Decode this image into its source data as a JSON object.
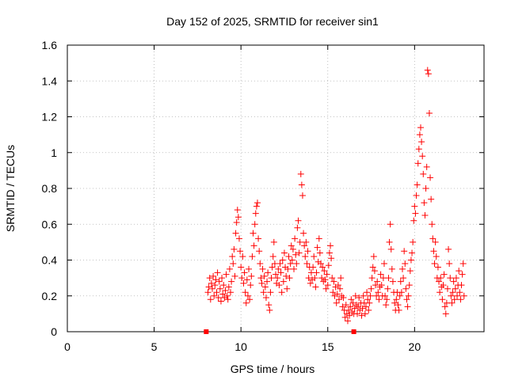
{
  "chart_data": {
    "type": "scatter",
    "title": "Day 152 of 2025, SRMTID for receiver sin1",
    "xlabel": "GPS time / hours",
    "ylabel": "SRMTID / TECUs",
    "xlim": [
      0,
      24
    ],
    "ylim": [
      0,
      1.6
    ],
    "xticks": [
      0,
      5,
      10,
      15,
      20
    ],
    "yticks": [
      0,
      0.2,
      0.4,
      0.6,
      0.8,
      1,
      1.2,
      1.4,
      1.6
    ],
    "ytick_labels": [
      "0",
      "0.2",
      "0.4",
      "0.6",
      "0.8",
      "1",
      "1.2",
      "1.4",
      "1.6"
    ],
    "grid": true,
    "marker": "plus",
    "color": "#ff0000",
    "zero_markers": [
      [
        8.0,
        0.0
      ],
      [
        16.5,
        0.0
      ]
    ],
    "series": [
      {
        "name": "sin1",
        "points": [
          [
            8.1,
            0.22
          ],
          [
            8.15,
            0.25
          ],
          [
            8.2,
            0.3
          ],
          [
            8.25,
            0.18
          ],
          [
            8.3,
            0.27
          ],
          [
            8.35,
            0.24
          ],
          [
            8.4,
            0.31
          ],
          [
            8.45,
            0.2
          ],
          [
            8.5,
            0.26
          ],
          [
            8.55,
            0.29
          ],
          [
            8.6,
            0.22
          ],
          [
            8.65,
            0.33
          ],
          [
            8.7,
            0.19
          ],
          [
            8.75,
            0.28
          ],
          [
            8.8,
            0.24
          ],
          [
            8.85,
            0.17
          ],
          [
            8.9,
            0.3
          ],
          [
            8.95,
            0.21
          ],
          [
            9.0,
            0.26
          ],
          [
            9.05,
            0.19
          ],
          [
            9.1,
            0.23
          ],
          [
            9.15,
            0.32
          ],
          [
            9.2,
            0.2
          ],
          [
            9.25,
            0.18
          ],
          [
            9.3,
            0.25
          ],
          [
            9.35,
            0.35
          ],
          [
            9.4,
            0.22
          ],
          [
            9.45,
            0.28
          ],
          [
            9.5,
            0.42
          ],
          [
            9.55,
            0.38
          ],
          [
            9.6,
            0.46
          ],
          [
            9.65,
            0.31
          ],
          [
            9.7,
            0.55
          ],
          [
            9.75,
            0.61
          ],
          [
            9.8,
            0.68
          ],
          [
            9.85,
            0.64
          ],
          [
            9.9,
            0.52
          ],
          [
            9.95,
            0.45
          ],
          [
            10.0,
            0.36
          ],
          [
            10.05,
            0.3
          ],
          [
            10.1,
            0.42
          ],
          [
            10.15,
            0.27
          ],
          [
            10.2,
            0.33
          ],
          [
            10.25,
            0.22
          ],
          [
            10.3,
            0.16
          ],
          [
            10.35,
            0.29
          ],
          [
            10.4,
            0.2
          ],
          [
            10.45,
            0.35
          ],
          [
            10.5,
            0.18
          ],
          [
            10.55,
            0.26
          ],
          [
            10.6,
            0.31
          ],
          [
            10.65,
            0.42
          ],
          [
            10.7,
            0.55
          ],
          [
            10.75,
            0.48
          ],
          [
            10.8,
            0.6
          ],
          [
            10.85,
            0.66
          ],
          [
            10.9,
            0.7
          ],
          [
            10.95,
            0.72
          ],
          [
            11.0,
            0.52
          ],
          [
            11.05,
            0.45
          ],
          [
            11.1,
            0.38
          ],
          [
            11.15,
            0.3
          ],
          [
            11.2,
            0.27
          ],
          [
            11.25,
            0.35
          ],
          [
            11.3,
            0.22
          ],
          [
            11.35,
            0.31
          ],
          [
            11.4,
            0.25
          ],
          [
            11.45,
            0.19
          ],
          [
            11.5,
            0.28
          ],
          [
            11.55,
            0.33
          ],
          [
            11.6,
            0.15
          ],
          [
            11.65,
            0.12
          ],
          [
            11.7,
            0.22
          ],
          [
            11.75,
            0.3
          ],
          [
            11.8,
            0.36
          ],
          [
            11.85,
            0.42
          ],
          [
            11.9,
            0.5
          ],
          [
            11.95,
            0.38
          ],
          [
            12.0,
            0.32
          ],
          [
            12.05,
            0.27
          ],
          [
            12.1,
            0.3
          ],
          [
            12.15,
            0.35
          ],
          [
            12.2,
            0.26
          ],
          [
            12.25,
            0.38
          ],
          [
            12.3,
            0.33
          ],
          [
            12.35,
            0.22
          ],
          [
            12.4,
            0.4
          ],
          [
            12.45,
            0.28
          ],
          [
            12.5,
            0.44
          ],
          [
            12.55,
            0.36
          ],
          [
            12.6,
            0.31
          ],
          [
            12.65,
            0.24
          ],
          [
            12.7,
            0.35
          ],
          [
            12.75,
            0.42
          ],
          [
            12.8,
            0.3
          ],
          [
            12.85,
            0.38
          ],
          [
            12.9,
            0.48
          ],
          [
            12.95,
            0.4
          ],
          [
            13.0,
            0.46
          ],
          [
            13.05,
            0.35
          ],
          [
            13.1,
            0.52
          ],
          [
            13.15,
            0.43
          ],
          [
            13.2,
            0.38
          ],
          [
            13.25,
            0.58
          ],
          [
            13.3,
            0.62
          ],
          [
            13.35,
            0.44
          ],
          [
            13.4,
            0.5
          ],
          [
            13.45,
            0.88
          ],
          [
            13.5,
            0.82
          ],
          [
            13.55,
            0.76
          ],
          [
            13.6,
            0.55
          ],
          [
            13.65,
            0.48
          ],
          [
            13.7,
            0.42
          ],
          [
            13.75,
            0.5
          ],
          [
            13.8,
            0.38
          ],
          [
            13.85,
            0.45
          ],
          [
            13.9,
            0.3
          ],
          [
            13.95,
            0.36
          ],
          [
            14.0,
            0.27
          ],
          [
            14.05,
            0.33
          ],
          [
            14.1,
            0.29
          ],
          [
            14.15,
            0.36
          ],
          [
            14.2,
            0.42
          ],
          [
            14.25,
            0.3
          ],
          [
            14.3,
            0.25
          ],
          [
            14.35,
            0.33
          ],
          [
            14.4,
            0.47
          ],
          [
            14.45,
            0.39
          ],
          [
            14.5,
            0.52
          ],
          [
            14.55,
            0.44
          ],
          [
            14.6,
            0.38
          ],
          [
            14.65,
            0.3
          ],
          [
            14.7,
            0.36
          ],
          [
            14.75,
            0.28
          ],
          [
            14.8,
            0.34
          ],
          [
            14.85,
            0.29
          ],
          [
            14.9,
            0.24
          ],
          [
            14.95,
            0.32
          ],
          [
            15.0,
            0.26
          ],
          [
            15.05,
            0.37
          ],
          [
            15.1,
            0.44
          ],
          [
            15.15,
            0.48
          ],
          [
            15.2,
            0.41
          ],
          [
            15.25,
            0.3
          ],
          [
            15.3,
            0.22
          ],
          [
            15.35,
            0.28
          ],
          [
            15.4,
            0.2
          ],
          [
            15.45,
            0.25
          ],
          [
            15.5,
            0.16
          ],
          [
            15.55,
            0.21
          ],
          [
            15.6,
            0.26
          ],
          [
            15.65,
            0.18
          ],
          [
            15.7,
            0.24
          ],
          [
            15.75,
            0.3
          ],
          [
            15.8,
            0.2
          ],
          [
            15.85,
            0.14
          ],
          [
            15.9,
            0.19
          ],
          [
            15.95,
            0.12
          ],
          [
            16.0,
            0.08
          ],
          [
            16.05,
            0.15
          ],
          [
            16.1,
            0.1
          ],
          [
            16.15,
            0.06
          ],
          [
            16.2,
            0.12
          ],
          [
            16.25,
            0.09
          ],
          [
            16.3,
            0.14
          ],
          [
            16.35,
            0.18
          ],
          [
            16.4,
            0.11
          ],
          [
            16.45,
            0.16
          ],
          [
            16.5,
            0.1
          ],
          [
            16.55,
            0.13
          ],
          [
            16.6,
            0.2
          ],
          [
            16.65,
            0.15
          ],
          [
            16.7,
            0.1
          ],
          [
            16.75,
            0.14
          ],
          [
            16.8,
            0.19
          ],
          [
            16.85,
            0.12
          ],
          [
            16.9,
            0.16
          ],
          [
            16.95,
            0.09
          ],
          [
            17.0,
            0.13
          ],
          [
            17.05,
            0.2
          ],
          [
            17.1,
            0.16
          ],
          [
            17.15,
            0.1
          ],
          [
            17.2,
            0.14
          ],
          [
            17.25,
            0.22
          ],
          [
            17.3,
            0.18
          ],
          [
            17.35,
            0.12
          ],
          [
            17.4,
            0.16
          ],
          [
            17.45,
            0.2
          ],
          [
            17.5,
            0.24
          ],
          [
            17.55,
            0.3
          ],
          [
            17.6,
            0.36
          ],
          [
            17.65,
            0.42
          ],
          [
            17.7,
            0.34
          ],
          [
            17.75,
            0.26
          ],
          [
            17.8,
            0.2
          ],
          [
            17.85,
            0.28
          ],
          [
            17.9,
            0.22
          ],
          [
            17.95,
            0.18
          ],
          [
            18.0,
            0.25
          ],
          [
            18.05,
            0.32
          ],
          [
            18.1,
            0.26
          ],
          [
            18.15,
            0.2
          ],
          [
            18.2,
            0.3
          ],
          [
            18.25,
            0.38
          ],
          [
            18.3,
            0.2
          ],
          [
            18.35,
            0.15
          ],
          [
            18.4,
            0.18
          ],
          [
            18.45,
            0.24
          ],
          [
            18.5,
            0.3
          ],
          [
            18.55,
            0.5
          ],
          [
            18.6,
            0.6
          ],
          [
            18.65,
            0.46
          ],
          [
            18.7,
            0.35
          ],
          [
            18.75,
            0.28
          ],
          [
            18.8,
            0.22
          ],
          [
            18.85,
            0.16
          ],
          [
            18.9,
            0.12
          ],
          [
            18.95,
            0.18
          ],
          [
            19.0,
            0.22
          ],
          [
            19.05,
            0.15
          ],
          [
            19.1,
            0.12
          ],
          [
            19.15,
            0.2
          ],
          [
            19.2,
            0.28
          ],
          [
            19.25,
            0.22
          ],
          [
            19.3,
            0.35
          ],
          [
            19.35,
            0.3
          ],
          [
            19.4,
            0.45
          ],
          [
            19.45,
            0.38
          ],
          [
            19.5,
            0.24
          ],
          [
            19.55,
            0.18
          ],
          [
            19.6,
            0.14
          ],
          [
            19.65,
            0.2
          ],
          [
            19.7,
            0.26
          ],
          [
            19.75,
            0.34
          ],
          [
            19.8,
            0.4
          ],
          [
            19.85,
            0.44
          ],
          [
            19.9,
            0.5
          ],
          [
            19.95,
            0.62
          ],
          [
            20.0,
            0.7
          ],
          [
            20.05,
            0.66
          ],
          [
            20.1,
            0.76
          ],
          [
            20.15,
            0.82
          ],
          [
            20.2,
            0.94
          ],
          [
            20.25,
            1.02
          ],
          [
            20.3,
            1.1
          ],
          [
            20.35,
            1.14
          ],
          [
            20.4,
            1.06
          ],
          [
            20.45,
            0.98
          ],
          [
            20.5,
            0.88
          ],
          [
            20.55,
            0.72
          ],
          [
            20.6,
            0.65
          ],
          [
            20.65,
            0.8
          ],
          [
            20.7,
            0.92
          ],
          [
            20.75,
            1.46
          ],
          [
            20.8,
            1.44
          ],
          [
            20.85,
            1.22
          ],
          [
            20.9,
            0.86
          ],
          [
            20.95,
            0.74
          ],
          [
            21.0,
            0.6
          ],
          [
            21.05,
            0.52
          ],
          [
            21.1,
            0.45
          ],
          [
            21.15,
            0.38
          ],
          [
            21.2,
            0.5
          ],
          [
            21.25,
            0.42
          ],
          [
            21.3,
            0.3
          ],
          [
            21.35,
            0.36
          ],
          [
            21.4,
            0.28
          ],
          [
            21.45,
            0.22
          ],
          [
            21.5,
            0.3
          ],
          [
            21.55,
            0.25
          ],
          [
            21.6,
            0.18
          ],
          [
            21.65,
            0.26
          ],
          [
            21.7,
            0.32
          ],
          [
            21.75,
            0.14
          ],
          [
            21.8,
            0.1
          ],
          [
            21.85,
            0.16
          ],
          [
            21.9,
            0.24
          ],
          [
            21.95,
            0.46
          ],
          [
            22.0,
            0.38
          ],
          [
            22.05,
            0.3
          ],
          [
            22.1,
            0.2
          ],
          [
            22.15,
            0.16
          ],
          [
            22.2,
            0.22
          ],
          [
            22.25,
            0.28
          ],
          [
            22.3,
            0.18
          ],
          [
            22.35,
            0.24
          ],
          [
            22.4,
            0.3
          ],
          [
            22.45,
            0.2
          ],
          [
            22.5,
            0.26
          ],
          [
            22.55,
            0.34
          ],
          [
            22.6,
            0.22
          ],
          [
            22.65,
            0.18
          ],
          [
            22.7,
            0.26
          ],
          [
            22.75,
            0.32
          ],
          [
            22.8,
            0.38
          ],
          [
            22.85,
            0.2
          ]
        ]
      }
    ]
  }
}
